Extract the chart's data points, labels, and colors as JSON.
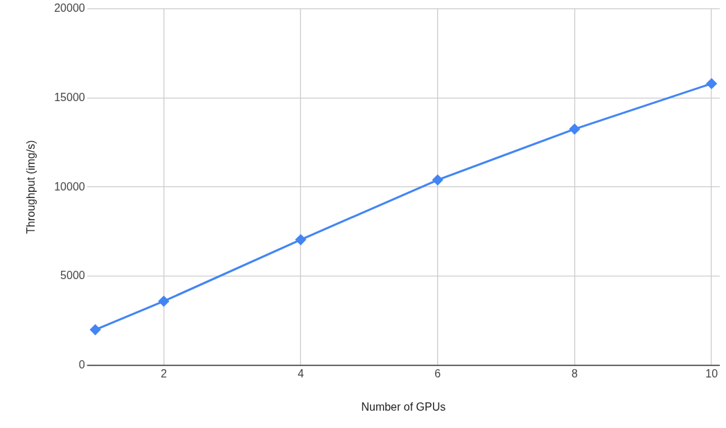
{
  "chart_data": {
    "type": "line",
    "xlabel": "Number of GPUs",
    "ylabel": "Throughput (img/s)",
    "x": [
      1,
      2,
      4,
      6,
      8,
      10
    ],
    "series": [
      {
        "color": "#4285f4",
        "values": [
          2000,
          3600,
          7050,
          10400,
          13250,
          15800
        ]
      }
    ],
    "xlim": [
      0.88,
      10.12
    ],
    "xticks": [
      2,
      4,
      6,
      8,
      10
    ],
    "ylim": [
      0,
      20000
    ],
    "yticks": [
      0,
      5000,
      10000,
      15000,
      20000
    ],
    "grid": true,
    "legend": false,
    "marker": "diamond",
    "line_style": "solid"
  }
}
